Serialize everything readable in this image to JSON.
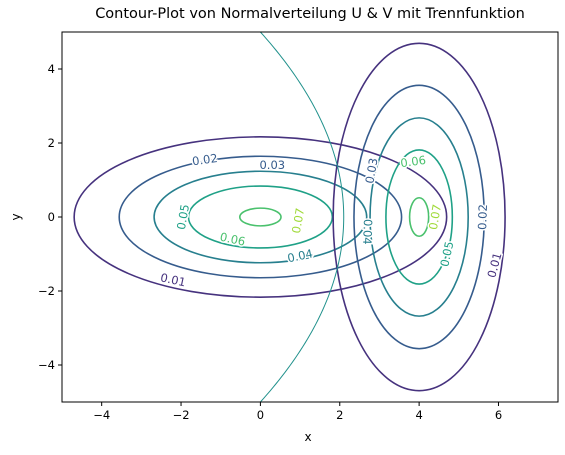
{
  "chart_data": {
    "type": "contour",
    "title": "Contour-Plot von Normalverteilung U & V mit Trennfunktion",
    "xlabel": "x",
    "ylabel": "y",
    "xlim": [
      -5,
      7.5
    ],
    "ylim": [
      -5,
      5
    ],
    "xticks": [
      -4,
      -2,
      0,
      2,
      4,
      6
    ],
    "yticks": [
      -4,
      -2,
      0,
      2,
      4
    ],
    "xtick_labels": [
      "−4",
      "−2",
      "0",
      "2",
      "4",
      "6"
    ],
    "ytick_labels": [
      "−4",
      "−2",
      "0",
      "2",
      "4"
    ],
    "grid": false,
    "distributions": [
      {
        "name": "U",
        "mean": [
          0,
          0
        ],
        "std": [
          2.6,
          1.2
        ]
      },
      {
        "name": "V",
        "mean": [
          4,
          0
        ],
        "std": [
          1.2,
          2.6
        ]
      }
    ],
    "contour_levels": [
      0.01,
      0.02,
      0.03,
      0.04,
      0.05,
      0.06,
      0.07
    ],
    "level_colors": [
      "#46327e",
      "#365c8d",
      "#277f8e",
      "#1fa187",
      "#4ac16d",
      "#a0da39",
      "#c8e020"
    ],
    "separator": {
      "type": "parabola",
      "vertex": [
        2.1,
        0
      ],
      "x_at_y5": 0,
      "color": "#21918c"
    },
    "contour_labels": [
      {
        "text": "0.01",
        "x": -2.2,
        "y": -1.7,
        "rot": 12,
        "color": "#46327e"
      },
      {
        "text": "0.02",
        "x": -1.4,
        "y": 1.55,
        "rot": -8,
        "color": "#365c8d"
      },
      {
        "text": "0.03",
        "x": 0.3,
        "y": 1.4,
        "rot": 0,
        "color": "#365c8d"
      },
      {
        "text": "0.04",
        "x": 1.0,
        "y": -1.05,
        "rot": -12,
        "color": "#277f8e"
      },
      {
        "text": "0.05",
        "x": -1.95,
        "y": 0.0,
        "rot": -80,
        "color": "#1fa187"
      },
      {
        "text": "0.06",
        "x": -0.7,
        "y": -0.6,
        "rot": 12,
        "color": "#4ac16d"
      },
      {
        "text": "0.07",
        "x": 0.95,
        "y": -0.1,
        "rot": -80,
        "color": "#a0da39"
      },
      {
        "text": "0.01",
        "x": 5.9,
        "y": -1.3,
        "rot": -75,
        "color": "#46327e"
      },
      {
        "text": "0.02",
        "x": 5.6,
        "y": 0.0,
        "rot": -88,
        "color": "#365c8d"
      },
      {
        "text": "0.03",
        "x": 2.8,
        "y": 1.25,
        "rot": -80,
        "color": "#365c8d"
      },
      {
        "text": "0.04",
        "x": 2.7,
        "y": -0.4,
        "rot": 92,
        "color": "#277f8e"
      },
      {
        "text": "0.05",
        "x": 4.7,
        "y": -1.0,
        "rot": -78,
        "color": "#1fa187"
      },
      {
        "text": "0.06",
        "x": 3.85,
        "y": 1.5,
        "rot": -8,
        "color": "#4ac16d"
      },
      {
        "text": "0.07",
        "x": 4.4,
        "y": 0.0,
        "rot": -80,
        "color": "#a0da39"
      }
    ]
  }
}
